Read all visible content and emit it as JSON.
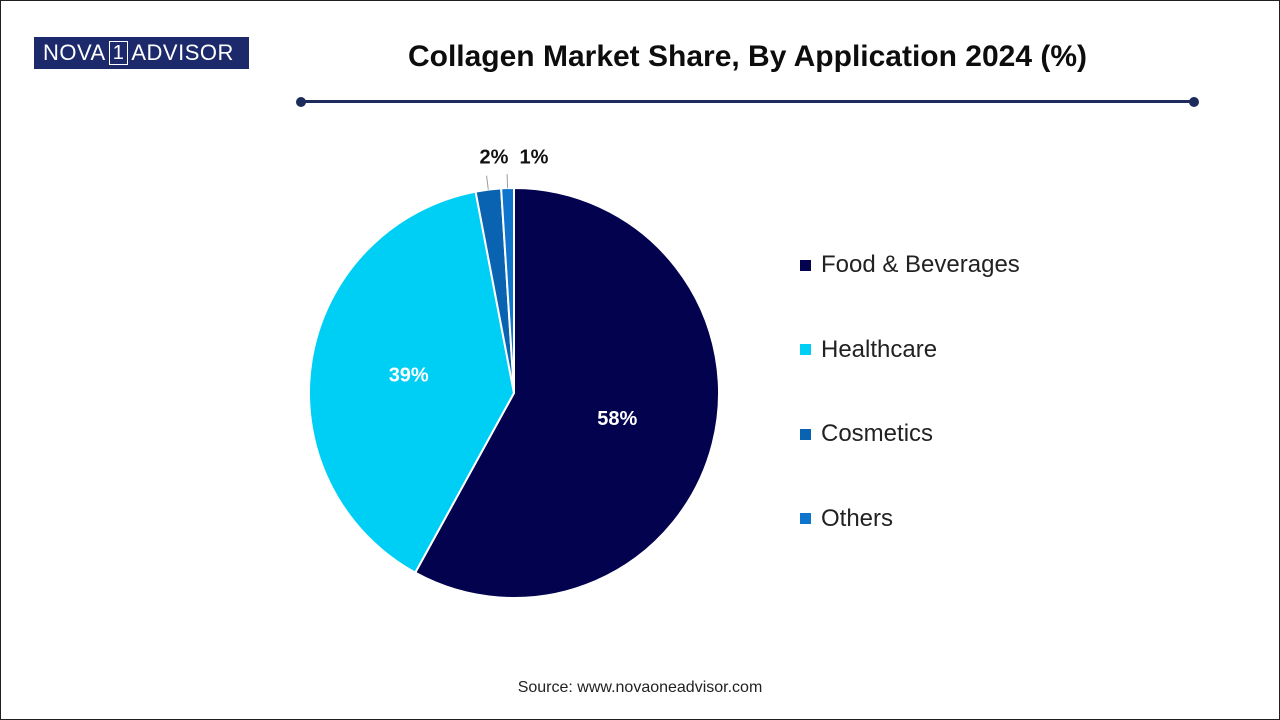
{
  "logo": {
    "part1": "NOVA",
    "part2": "1",
    "part3": "ADVISOR"
  },
  "source": "Source: www.novaoneadvisor.com",
  "chart_data": {
    "type": "pie",
    "title": "Collagen Market Share, By Application 2024 (%)",
    "unit": "%",
    "categories": [
      "Food & Beverages",
      "Healthcare",
      "Cosmetics",
      "Others"
    ],
    "values": [
      58,
      39,
      2,
      1
    ],
    "labels": [
      "58%",
      "39%",
      "2%",
      "1%"
    ],
    "colors": [
      "#02024f",
      "#00cff5",
      "#0a63b0",
      "#0f74cc"
    ],
    "label_colors": [
      "#ffffff",
      "#ffffff",
      "#111111",
      "#111111"
    ],
    "legend_position": "right",
    "start_angle_deg": 0,
    "direction": "clockwise"
  }
}
